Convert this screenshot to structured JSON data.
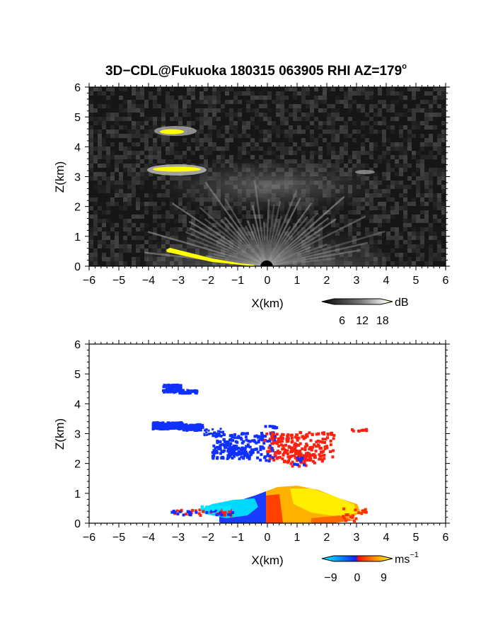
{
  "title": "3D−CDL@Fukuoka 180315 063905 RHI AZ=179",
  "title_suffix": "o",
  "colors": {
    "echo_strong": "#ffff00",
    "doppler_negative_strong": "#1030ff",
    "doppler_negative_weak": "#00e8ff",
    "doppler_zero": "#ff2010",
    "doppler_positive_strong": "#ffff00"
  },
  "chart_data": [
    {
      "type": "heatmap",
      "name": "reflectivity",
      "xlabel": "X(km)",
      "ylabel": "Z(km)",
      "xlim": [
        -6,
        6
      ],
      "ylim": [
        0,
        6
      ],
      "xticks": [
        "−6",
        "−5",
        "−4",
        "−3",
        "−2",
        "−1",
        "0",
        "1",
        "2",
        "3",
        "4",
        "5",
        "6"
      ],
      "yticks": [
        "0",
        "1",
        "2",
        "3",
        "4",
        "5",
        "6"
      ],
      "colorbar": {
        "unit": "dB",
        "ticks": [
          "6",
          "12",
          "18"
        ],
        "range": [
          0,
          21
        ],
        "colormap": "gray-to-yellow"
      },
      "layers": [
        {
          "x_range": [
            -3.6,
            -2.9
          ],
          "z": 4.6,
          "level": "strong"
        },
        {
          "x_range": [
            -3.9,
            -2.1
          ],
          "z": 3.3,
          "level": "strong"
        },
        {
          "x_range": [
            -3.3,
            -0.2
          ],
          "z": 0.4,
          "level": "strong"
        },
        {
          "x_range": [
            -2.0,
            3.7
          ],
          "z": 2.5,
          "level": "weak"
        },
        {
          "x_range": [
            -1.8,
            1.8
          ],
          "z": 0.5,
          "level": "weak"
        }
      ]
    },
    {
      "type": "heatmap",
      "name": "doppler_velocity",
      "xlabel": "X(km)",
      "ylabel": "Z(km)",
      "xlim": [
        -6,
        6
      ],
      "ylim": [
        0,
        6
      ],
      "xticks": [
        "−6",
        "−5",
        "−4",
        "−3",
        "−2",
        "−1",
        "0",
        "1",
        "2",
        "3",
        "4",
        "5",
        "6"
      ],
      "yticks": [
        "0",
        "1",
        "2",
        "3",
        "4",
        "5",
        "6"
      ],
      "colorbar": {
        "unit": "ms",
        "unit_exp": "−1",
        "ticks": [
          "−9",
          "0",
          "9"
        ],
        "range": [
          -12,
          12
        ],
        "colormap": "cyan-blue-red-yellow"
      },
      "regions": [
        {
          "x_range": [
            -3.5,
            -2.4
          ],
          "z": 4.5,
          "velocity_sign": "negative"
        },
        {
          "x_range": [
            -3.9,
            -2.3
          ],
          "z": 3.3,
          "velocity_sign": "negative"
        },
        {
          "x_range": [
            -2.1,
            0.0
          ],
          "z": 2.6,
          "velocity_sign": "negative"
        },
        {
          "x_range": [
            0.0,
            3.4
          ],
          "z": 2.6,
          "velocity_sign": "positive"
        },
        {
          "x_range": [
            -2.2,
            0.0
          ],
          "z": 0.4,
          "velocity_sign": "negative"
        },
        {
          "x_range": [
            0.0,
            3.2
          ],
          "z": 0.5,
          "velocity_sign": "positive"
        }
      ]
    }
  ]
}
